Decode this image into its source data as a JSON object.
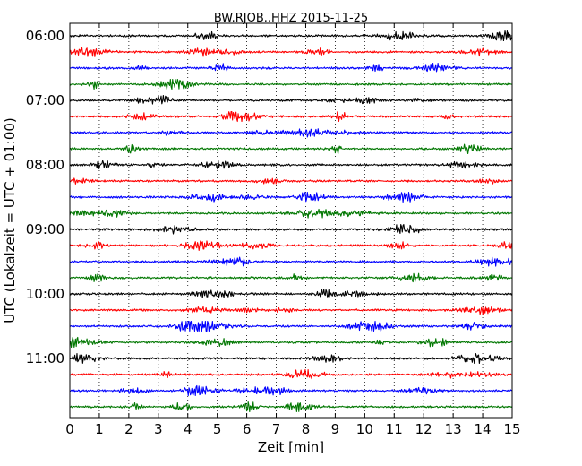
{
  "chart_data": {
    "type": "line",
    "title": "BW.RJOB..HHZ 2015-11-25",
    "xlabel": "Zeit  [min]",
    "ylabel": "UTC (Lokalzeit = UTC + 01:00)",
    "xlim": [
      0,
      15
    ],
    "x_ticks": [
      "0",
      "1",
      "2",
      "3",
      "4",
      "5",
      "6",
      "7",
      "8",
      "9",
      "10",
      "11",
      "12",
      "13",
      "14",
      "15"
    ],
    "y_ticks": [
      "06:00",
      "07:00",
      "08:00",
      "09:00",
      "10:00",
      "11:00"
    ],
    "grid": "vertical dotted lines at each minute",
    "trace_interval_minutes": 15,
    "trace_colors": [
      "#000000",
      "#ff0000",
      "#0000ff",
      "#007700"
    ],
    "traces": [
      {
        "start": "06:00"
      },
      {
        "start": "06:15"
      },
      {
        "start": "06:30"
      },
      {
        "start": "06:45"
      },
      {
        "start": "07:00"
      },
      {
        "start": "07:15"
      },
      {
        "start": "07:30"
      },
      {
        "start": "07:45"
      },
      {
        "start": "08:00"
      },
      {
        "start": "08:15"
      },
      {
        "start": "08:30"
      },
      {
        "start": "08:45"
      },
      {
        "start": "09:00"
      },
      {
        "start": "09:15"
      },
      {
        "start": "09:30"
      },
      {
        "start": "09:45"
      },
      {
        "start": "10:00"
      },
      {
        "start": "10:15"
      },
      {
        "start": "10:30"
      },
      {
        "start": "10:45"
      },
      {
        "start": "11:00"
      },
      {
        "start": "11:15"
      },
      {
        "start": "11:30"
      },
      {
        "start": "11:45"
      }
    ]
  }
}
